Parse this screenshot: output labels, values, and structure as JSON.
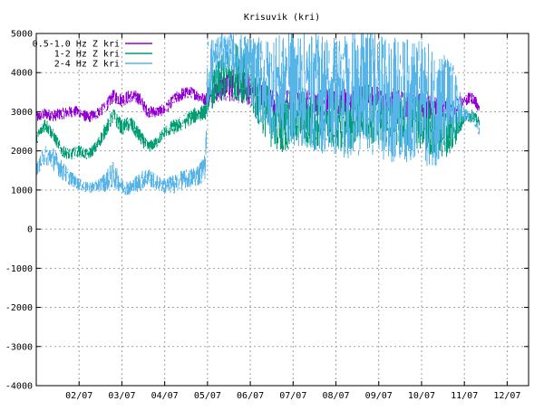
{
  "chart_data": {
    "type": "line",
    "title": "Krisuvik (kri)",
    "xlabel": "",
    "ylabel": "",
    "x_unit": "month/day",
    "xlim": [
      1,
      12.5
    ],
    "ylim": [
      -4000,
      5000
    ],
    "y_ticks": [
      5000,
      4000,
      3000,
      2000,
      1000,
      0,
      -1000,
      -2000,
      -3000,
      -4000
    ],
    "x_ticks": [
      {
        "label": "02/07",
        "x": 2
      },
      {
        "label": "03/07",
        "x": 3
      },
      {
        "label": "04/07",
        "x": 4
      },
      {
        "label": "05/07",
        "x": 5
      },
      {
        "label": "06/07",
        "x": 6
      },
      {
        "label": "07/07",
        "x": 7
      },
      {
        "label": "08/07",
        "x": 8
      },
      {
        "label": "09/07",
        "x": 9
      },
      {
        "label": "10/07",
        "x": 10
      },
      {
        "label": "11/07",
        "x": 11
      },
      {
        "label": "12/07",
        "x": 12
      }
    ],
    "grid": true,
    "legend_position": "top-left",
    "series": [
      {
        "name": "0.5-1.0 Hz Z kri",
        "color": "#9400d3",
        "x": [
          1.0,
          1.2,
          1.4,
          1.6,
          1.8,
          2.0,
          2.2,
          2.4,
          2.6,
          2.8,
          3.0,
          3.2,
          3.4,
          3.6,
          3.8,
          4.0,
          4.2,
          4.4,
          4.6,
          4.8,
          4.95,
          5.0,
          5.3,
          5.6,
          5.9,
          6.2,
          6.5,
          6.8,
          7.1,
          7.4,
          7.7,
          8.0,
          8.3,
          8.6,
          8.9,
          9.2,
          9.5,
          9.8,
          10.1,
          10.4,
          10.7,
          11.0,
          11.2,
          11.35
        ],
        "y": [
          2850,
          2950,
          2900,
          2950,
          3000,
          3000,
          2850,
          2950,
          3100,
          3400,
          3300,
          3400,
          3350,
          3000,
          3000,
          3050,
          3300,
          3450,
          3500,
          3400,
          3300,
          3450,
          3550,
          3700,
          3600,
          3400,
          3300,
          3250,
          3300,
          3200,
          3250,
          3200,
          3250,
          3300,
          3350,
          3200,
          3200,
          3150,
          3100,
          3100,
          3000,
          3300,
          3350,
          3100
        ],
        "y_spread": [
          300,
          300,
          300,
          300,
          300,
          300,
          300,
          300,
          300,
          350,
          350,
          350,
          350,
          300,
          300,
          300,
          300,
          350,
          300,
          300,
          300,
          500,
          600,
          900,
          900,
          700,
          700,
          600,
          700,
          700,
          700,
          700,
          700,
          700,
          700,
          700,
          700,
          700,
          700,
          700,
          600,
          350,
          300,
          300
        ]
      },
      {
        "name": "1-2 Hz Z kri",
        "color": "#009e73",
        "x": [
          1.0,
          1.2,
          1.4,
          1.6,
          1.8,
          2.0,
          2.2,
          2.4,
          2.6,
          2.8,
          3.0,
          3.2,
          3.4,
          3.6,
          3.8,
          4.0,
          4.2,
          4.4,
          4.6,
          4.8,
          4.95,
          5.0,
          5.3,
          5.6,
          5.9,
          6.2,
          6.5,
          6.8,
          7.1,
          7.4,
          7.7,
          8.0,
          8.3,
          8.6,
          8.9,
          9.2,
          9.5,
          9.8,
          10.1,
          10.4,
          10.7,
          11.0,
          11.2,
          11.35
        ],
        "y": [
          2300,
          2700,
          2400,
          2000,
          1900,
          2000,
          1900,
          2100,
          2500,
          2900,
          2600,
          2700,
          2400,
          2100,
          2200,
          2500,
          2600,
          2700,
          2850,
          2950,
          3000,
          3400,
          3800,
          4100,
          3900,
          3300,
          2800,
          2700,
          2900,
          2700,
          2900,
          2800,
          2700,
          3000,
          2900,
          2900,
          2800,
          2800,
          2700,
          2500,
          2500,
          2900,
          2900,
          2700
        ],
        "y_spread": [
          300,
          400,
          300,
          300,
          300,
          300,
          300,
          300,
          400,
          400,
          400,
          400,
          400,
          300,
          300,
          300,
          400,
          400,
          400,
          400,
          400,
          800,
          1200,
          1500,
          1500,
          1400,
          1500,
          1500,
          1500,
          1500,
          1500,
          1500,
          1500,
          1500,
          1500,
          1500,
          1500,
          1500,
          1500,
          1500,
          1200,
          400,
          300,
          300
        ]
      },
      {
        "name": "2-4 Hz Z kri",
        "color": "#56b4e9",
        "x": [
          1.0,
          1.2,
          1.4,
          1.6,
          1.8,
          2.0,
          2.2,
          2.4,
          2.6,
          2.8,
          3.0,
          3.2,
          3.4,
          3.6,
          3.8,
          4.0,
          4.2,
          4.4,
          4.6,
          4.8,
          4.95,
          5.0,
          5.3,
          5.6,
          5.9,
          6.2,
          6.5,
          6.8,
          7.1,
          7.4,
          7.7,
          8.0,
          8.3,
          8.6,
          8.9,
          9.2,
          9.5,
          9.8,
          10.1,
          10.4,
          10.7,
          11.0,
          11.2,
          11.35
        ],
        "y": [
          1500,
          1900,
          1800,
          1500,
          1300,
          1150,
          1050,
          1100,
          1200,
          1400,
          1100,
          1050,
          1200,
          1350,
          1200,
          1100,
          1150,
          1250,
          1300,
          1400,
          1600,
          4000,
          4500,
          4500,
          4200,
          3800,
          3600,
          3600,
          3600,
          3500,
          3500,
          3400,
          3400,
          3500,
          3500,
          3300,
          3300,
          3300,
          3200,
          3100,
          3200,
          2900,
          2850,
          2500
        ],
        "y_spread": [
          300,
          500,
          600,
          500,
          400,
          300,
          300,
          300,
          500,
          700,
          400,
          400,
          500,
          500,
          400,
          400,
          500,
          500,
          500,
          600,
          700,
          1800,
          1000,
          1000,
          1600,
          2200,
          2600,
          2800,
          3000,
          3000,
          3200,
          3200,
          3200,
          3200,
          3200,
          3200,
          3200,
          3200,
          3200,
          3000,
          2400,
          400,
          300,
          300
        ]
      }
    ]
  }
}
